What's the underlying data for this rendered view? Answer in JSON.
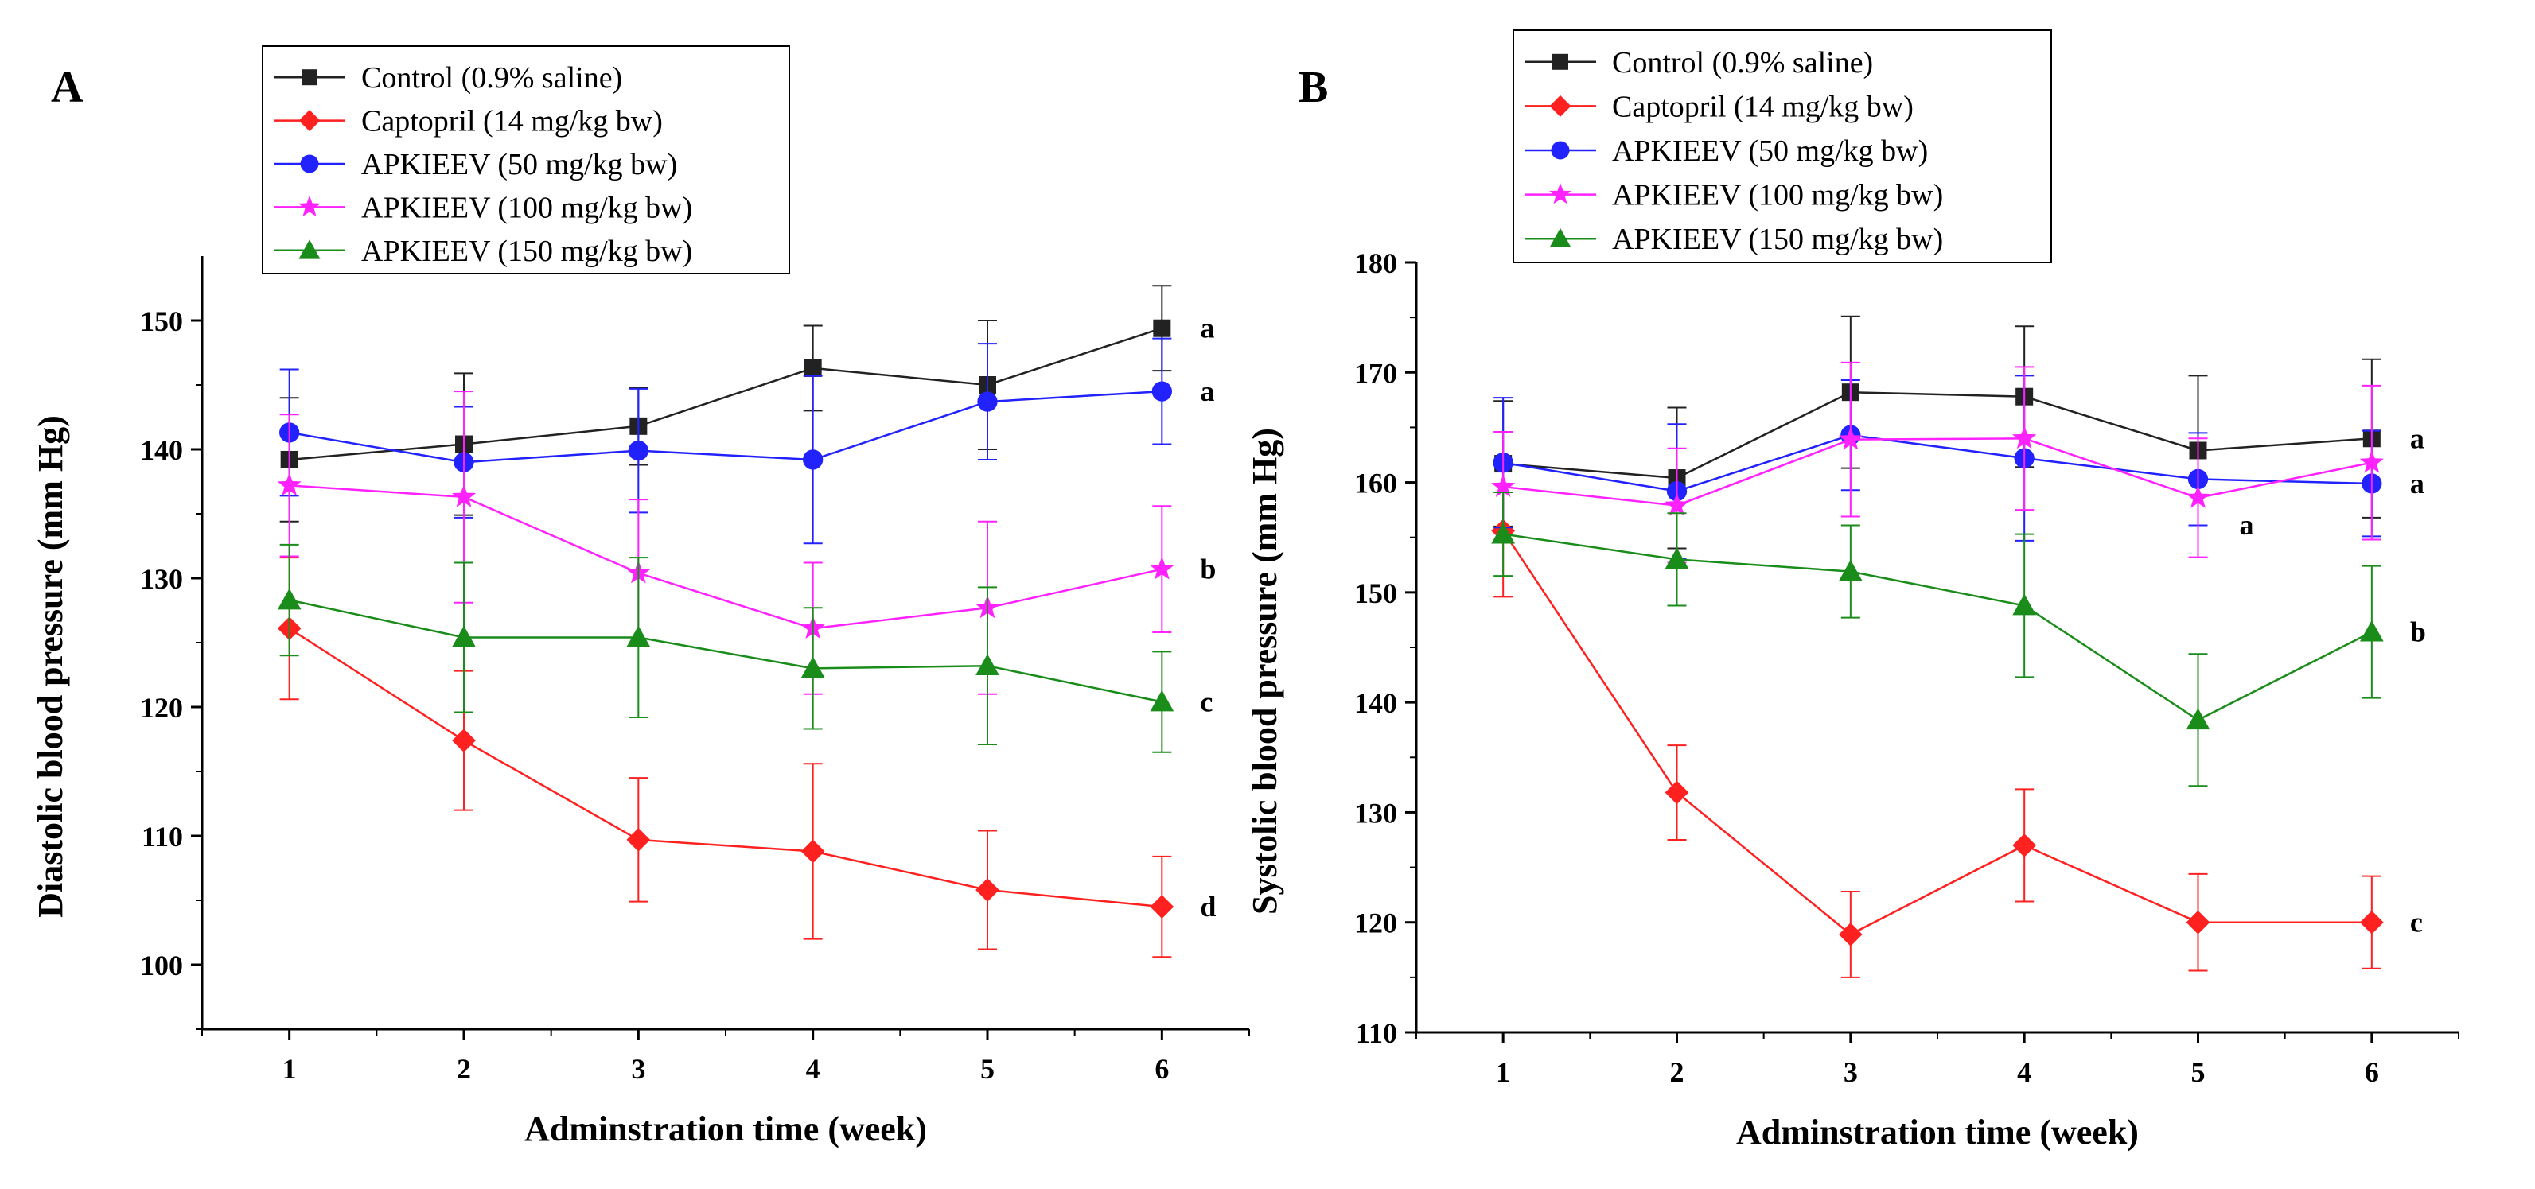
{
  "figure": {
    "x_label": "Adminstration time (week)"
  },
  "chart_data": [
    {
      "panel": "A",
      "type": "line",
      "ylabel": "Diastolic blood pressure (mm Hg)",
      "xlabel": "Adminstration time (week)",
      "x": [
        1,
        2,
        3,
        4,
        5,
        6
      ],
      "xlim": [
        0.5,
        6.5
      ],
      "ylim": [
        95,
        155
      ],
      "yticks": [
        100,
        110,
        120,
        130,
        140,
        150
      ],
      "legend_position": "top-center",
      "series": [
        {
          "name": "Control (0.9% saline)",
          "color": "#222222",
          "marker": "square",
          "values": [
            139.2,
            140.4,
            141.8,
            146.3,
            145.0,
            149.4
          ],
          "errors": [
            4.8,
            5.5,
            3.0,
            3.3,
            5.0,
            3.3
          ],
          "sig": "a"
        },
        {
          "name": "Captopril (14 mg/kg bw)",
          "color": "#ff2020",
          "marker": "diamond",
          "values": [
            126.1,
            117.4,
            109.7,
            108.8,
            105.8,
            104.5
          ],
          "errors": [
            5.5,
            5.4,
            4.8,
            6.8,
            4.6,
            3.9
          ],
          "sig": "d"
        },
        {
          "name": "APKIEEV (50 mg/kg bw)",
          "color": "#2222ff",
          "marker": "circle",
          "values": [
            141.3,
            139.0,
            139.9,
            139.2,
            143.7,
            144.5
          ],
          "errors": [
            4.9,
            4.3,
            4.8,
            6.5,
            4.5,
            4.1
          ],
          "sig": "a"
        },
        {
          "name": "APKIEEV (100 mg/kg bw)",
          "color": "#ff22ff",
          "marker": "star",
          "values": [
            137.2,
            136.3,
            130.4,
            126.1,
            127.7,
            130.7
          ],
          "errors": [
            5.5,
            8.2,
            5.7,
            5.1,
            6.7,
            4.9
          ],
          "sig": "b"
        },
        {
          "name": "APKIEEV (150 mg/kg bw)",
          "color": "#1a8c1a",
          "marker": "triangle",
          "values": [
            128.3,
            125.4,
            125.4,
            123.0,
            123.2,
            120.4
          ],
          "errors": [
            4.3,
            5.8,
            6.2,
            4.7,
            6.1,
            3.9
          ],
          "sig": "c"
        }
      ]
    },
    {
      "panel": "B",
      "type": "line",
      "ylabel": "Systolic blood pressure (mm Hg)",
      "xlabel": "Adminstration time (week)",
      "x": [
        1,
        2,
        3,
        4,
        5,
        6
      ],
      "xlim": [
        0.5,
        6.5
      ],
      "ylim": [
        110,
        180
      ],
      "yticks": [
        110,
        120,
        130,
        140,
        150,
        160,
        170,
        180
      ],
      "legend_position": "top-left",
      "series": [
        {
          "name": "Control (0.9% saline)",
          "color": "#222222",
          "marker": "square",
          "values": [
            161.7,
            160.4,
            168.2,
            167.8,
            162.9,
            164.0
          ],
          "errors": [
            5.7,
            6.4,
            6.9,
            6.4,
            6.8,
            7.2
          ],
          "sig": "a"
        },
        {
          "name": "Captopril (14 mg/kg bw)",
          "color": "#ff2020",
          "marker": "diamond",
          "values": [
            155.6,
            131.8,
            118.9,
            127.0,
            120.0,
            120.0
          ],
          "errors": [
            6.0,
            4.3,
            3.9,
            5.1,
            4.4,
            4.2
          ],
          "sig": "c"
        },
        {
          "name": "APKIEEV (50 mg/kg bw)",
          "color": "#2222ff",
          "marker": "circle",
          "values": [
            161.8,
            159.2,
            164.3,
            162.2,
            160.3,
            159.9
          ],
          "errors": [
            5.9,
            6.1,
            5.0,
            7.5,
            4.2,
            4.8
          ],
          "sig": "a"
        },
        {
          "name": "APKIEEV (100 mg/kg bw)",
          "color": "#ff22ff",
          "marker": "star",
          "values": [
            159.6,
            157.9,
            163.9,
            164.0,
            158.6,
            161.8
          ],
          "errors": [
            5.0,
            5.2,
            7.0,
            6.5,
            5.4,
            7.0
          ],
          "sig": "a"
        },
        {
          "name": "APKIEEV (150 mg/kg bw)",
          "color": "#1a8c1a",
          "marker": "triangle",
          "values": [
            155.3,
            153.0,
            151.9,
            148.8,
            138.4,
            146.4
          ],
          "errors": [
            3.8,
            4.2,
            4.2,
            6.5,
            6.0,
            6.0
          ],
          "sig": "b"
        }
      ]
    }
  ]
}
